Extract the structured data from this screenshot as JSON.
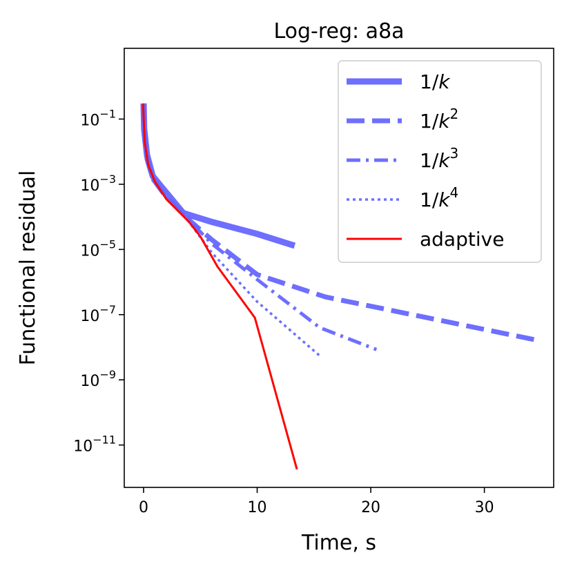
{
  "chart_data": {
    "type": "line",
    "title": "Log-reg: a8a",
    "xlabel": "Time, s",
    "ylabel": "Functional residual",
    "yscale": "log",
    "xlim": [
      -1.7,
      36.1
    ],
    "ylim_exp": [
      -12.3,
      1.17
    ],
    "x_ticks": [
      0,
      10,
      20,
      30
    ],
    "x_tick_labels": [
      "0",
      "10",
      "20",
      "30"
    ],
    "y_ticks_exp": [
      -1,
      -3,
      -5,
      -7,
      -9,
      -11
    ],
    "y_tick_labels": [
      {
        "base": "10",
        "exp": "−1"
      },
      {
        "base": "10",
        "exp": "−3"
      },
      {
        "base": "10",
        "exp": "−5"
      },
      {
        "base": "10",
        "exp": "−7"
      },
      {
        "base": "10",
        "exp": "−9"
      },
      {
        "base": "10",
        "exp": "−11"
      }
    ],
    "legend_position": "upper right",
    "series": [
      {
        "name": "1/k",
        "label_base": "1/",
        "label_var": "k",
        "label_exp": "",
        "color": "#6666ff",
        "style": "solid-thick",
        "points": [
          [
            0,
            0.3
          ],
          [
            0.05,
            0.05
          ],
          [
            0.3,
            0.008
          ],
          [
            0.8,
            0.0018
          ],
          [
            1.5,
            0.0009
          ],
          [
            3.5,
            0.00013
          ],
          [
            6,
            7e-05
          ],
          [
            10,
            3e-05
          ],
          [
            13.3,
            1.3e-05
          ]
        ]
      },
      {
        "name": "1/k^2",
        "label_base": "1/",
        "label_var": "k",
        "label_exp": "2",
        "color": "#6666ff",
        "style": "dashed",
        "points": [
          [
            0,
            0.3
          ],
          [
            0.05,
            0.05
          ],
          [
            0.3,
            0.006
          ],
          [
            0.8,
            0.0015
          ],
          [
            2,
            0.0004
          ],
          [
            4,
            8e-05
          ],
          [
            6,
            2e-05
          ],
          [
            10,
            1.7e-06
          ],
          [
            16,
            3.5e-07
          ],
          [
            25,
            8e-08
          ],
          [
            34.8,
            1.6e-08
          ]
        ]
      },
      {
        "name": "1/k^3",
        "label_base": "1/",
        "label_var": "k",
        "label_exp": "3",
        "color": "#6666ff",
        "style": "dashdot",
        "points": [
          [
            0,
            0.3
          ],
          [
            0.05,
            0.05
          ],
          [
            0.3,
            0.006
          ],
          [
            0.8,
            0.0015
          ],
          [
            2,
            0.0004
          ],
          [
            4,
            8e-05
          ],
          [
            6,
            1.5e-05
          ],
          [
            10,
            1.2e-06
          ],
          [
            15.5,
            4e-08
          ],
          [
            20.5,
            8.5e-09
          ]
        ]
      },
      {
        "name": "1/k^4",
        "label_base": "1/",
        "label_var": "k",
        "label_exp": "4",
        "color": "#6666ff",
        "style": "dotted",
        "points": [
          [
            0,
            0.3
          ],
          [
            0.05,
            0.05
          ],
          [
            0.3,
            0.006
          ],
          [
            0.8,
            0.0015
          ],
          [
            2,
            0.0004
          ],
          [
            4,
            7e-05
          ],
          [
            6,
            8e-06
          ],
          [
            10,
            2.5e-07
          ],
          [
            15.5,
            5.5e-09
          ]
        ]
      },
      {
        "name": "adaptive",
        "label_base": "adaptive",
        "label_var": "",
        "label_exp": "",
        "color": "#ff0000",
        "style": "solid-thin",
        "points": [
          [
            -0.05,
            0.3
          ],
          [
            0.1,
            0.02
          ],
          [
            0.4,
            0.004
          ],
          [
            1,
            0.0012
          ],
          [
            2,
            0.00035
          ],
          [
            4,
            7e-05
          ],
          [
            5,
            2.5e-05
          ],
          [
            6.5,
            3e-06
          ],
          [
            9.8,
            8e-08
          ],
          [
            13.5,
            1.8e-12
          ]
        ]
      }
    ]
  }
}
